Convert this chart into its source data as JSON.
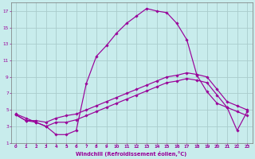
{
  "xlabel": "Windchill (Refroidissement éolien,°C)",
  "bg_color": "#c8ecec",
  "line_color": "#990099",
  "grid_color": "#aacccc",
  "xlim": [
    -0.5,
    23.5
  ],
  "ylim": [
    1,
    18
  ],
  "yticks": [
    1,
    3,
    5,
    7,
    9,
    11,
    13,
    15,
    17
  ],
  "xticks": [
    0,
    1,
    2,
    3,
    4,
    5,
    6,
    7,
    8,
    9,
    10,
    11,
    12,
    13,
    14,
    15,
    16,
    17,
    18,
    19,
    20,
    21,
    22,
    23
  ],
  "line1_x": [
    0,
    1,
    2,
    3,
    4,
    5,
    6,
    7,
    8,
    9,
    10,
    11,
    12,
    13,
    14,
    15,
    16,
    17,
    18,
    19,
    20,
    21,
    22,
    23
  ],
  "line1_y": [
    4.5,
    4.0,
    3.5,
    3.0,
    2.0,
    2.0,
    2.5,
    8.2,
    11.5,
    12.8,
    14.3,
    15.5,
    16.4,
    17.3,
    17.0,
    16.8,
    15.5,
    13.5,
    9.2,
    7.2,
    5.8,
    5.3,
    2.5,
    4.8
  ],
  "line2_x": [
    0,
    1,
    2,
    3,
    4,
    5,
    6,
    7,
    8,
    9,
    10,
    11,
    12,
    13,
    14,
    15,
    16,
    17,
    18,
    19,
    20,
    21,
    22,
    23
  ],
  "line2_y": [
    4.4,
    3.7,
    3.7,
    3.5,
    4.0,
    4.3,
    4.5,
    5.0,
    5.5,
    6.0,
    6.5,
    7.0,
    7.5,
    8.0,
    8.5,
    9.0,
    9.2,
    9.5,
    9.3,
    9.0,
    7.5,
    6.0,
    5.5,
    5.0
  ],
  "line3_x": [
    0,
    1,
    2,
    3,
    4,
    5,
    6,
    7,
    8,
    9,
    10,
    11,
    12,
    13,
    14,
    15,
    16,
    17,
    18,
    19,
    20,
    21,
    22,
    23
  ],
  "line3_y": [
    4.4,
    3.7,
    3.5,
    3.0,
    3.5,
    3.5,
    3.8,
    4.3,
    4.8,
    5.3,
    5.8,
    6.3,
    6.8,
    7.3,
    7.8,
    8.3,
    8.5,
    8.8,
    8.6,
    8.3,
    6.8,
    5.3,
    4.8,
    4.3
  ]
}
